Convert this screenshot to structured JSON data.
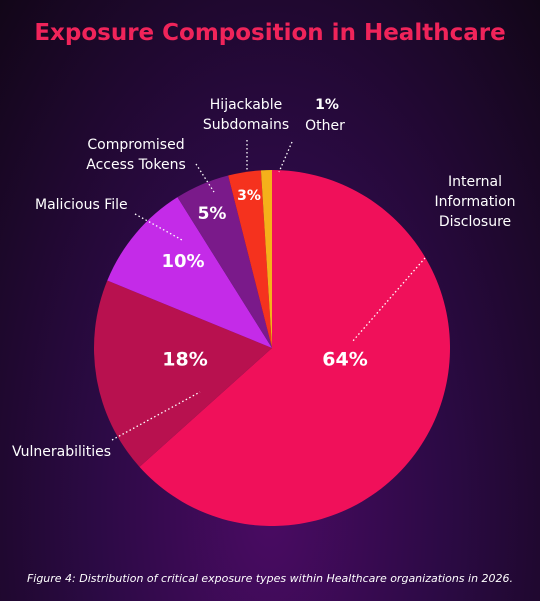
{
  "chart_data": {
    "type": "pie",
    "title": "Exposure Composition in Healthcare",
    "caption": "Figure 4: Distribution of critical exposure types within Healthcare organizations in 2026.",
    "categories": [
      "Internal Information Disclosure",
      "Vulnerabilities",
      "Malicious File",
      "Compromised Access Tokens",
      "Hijackable Subdomains",
      "Other"
    ],
    "values": [
      64,
      18,
      10,
      5,
      3,
      1
    ],
    "value_labels": [
      "64%",
      "18%",
      "10%",
      "5%",
      "3%",
      "1%"
    ],
    "colors": [
      "#f0105a",
      "#b8114f",
      "#c42be8",
      "#7a1a8a",
      "#f5321e",
      "#f5b01a"
    ]
  }
}
